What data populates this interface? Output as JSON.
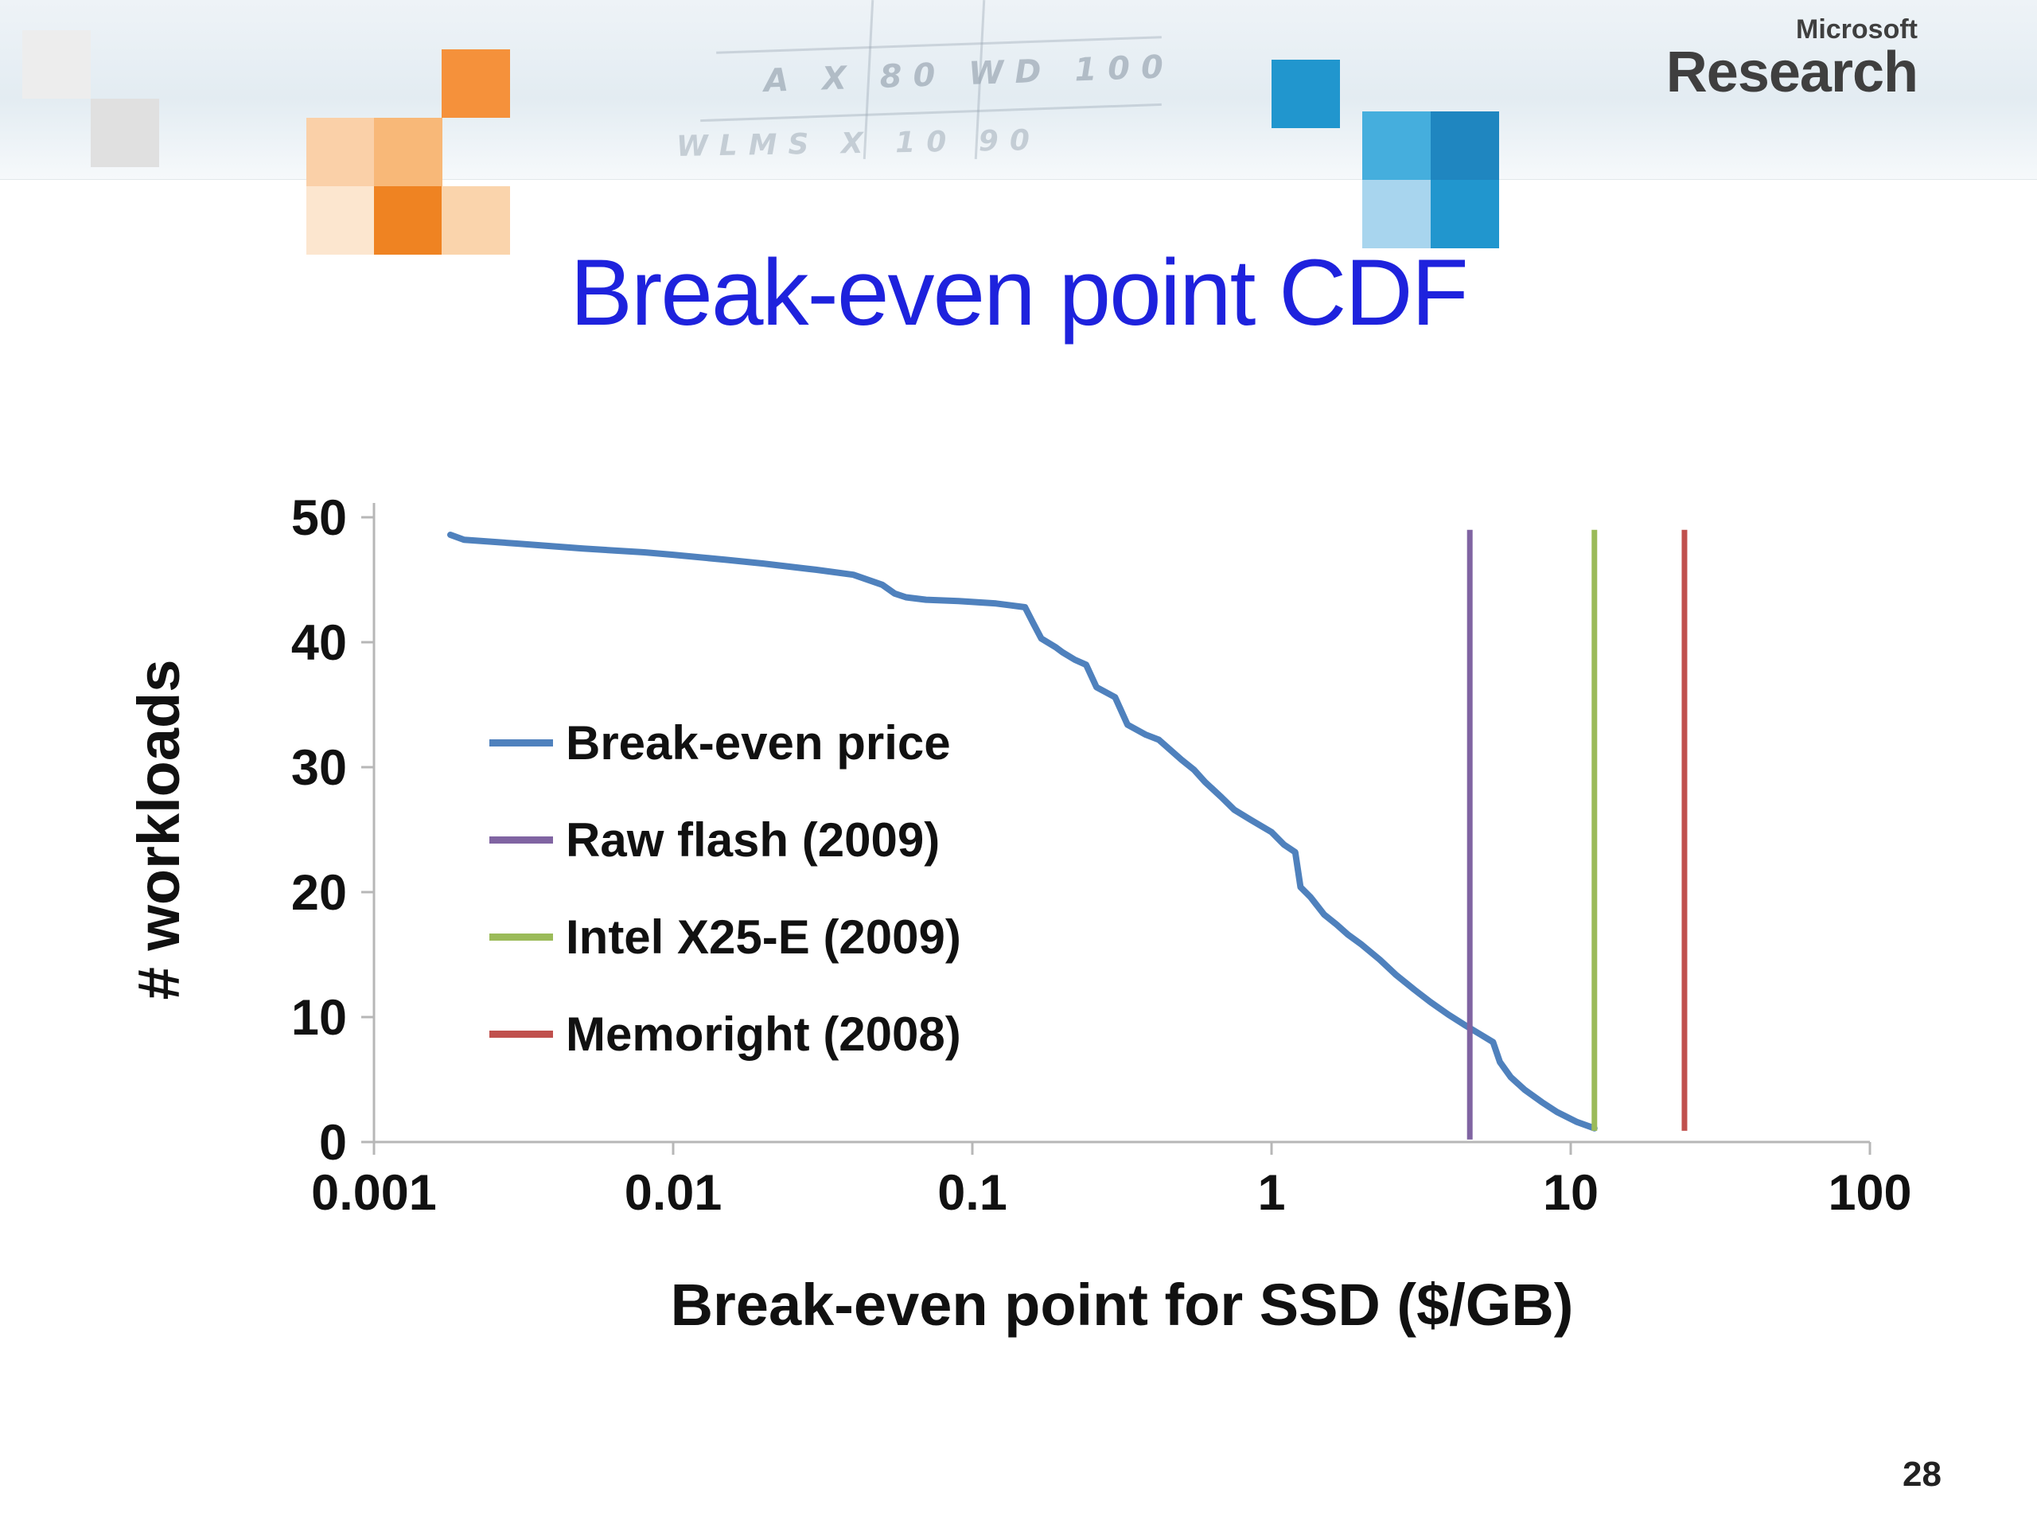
{
  "slide": {
    "title": "Break-even point CDF",
    "page_number": "28"
  },
  "logo": {
    "brand": "Microsoft",
    "division": "Research"
  },
  "header": {
    "sketch_text_1": "A  X  80  WD  100",
    "sketch_text_2": "WLMS      X  10  90"
  },
  "colors": {
    "title_blue": "#1e22dd",
    "curve_blue": "#4F81BD",
    "raw_flash_purple": "#8064A2",
    "intel_green": "#9BBB59",
    "memoright_red": "#C0504D",
    "axis_gray": "#b7b7b7"
  },
  "chart_data": {
    "type": "line",
    "title": "",
    "xlabel": "Break-even point for SSD ($/GB)",
    "ylabel": "# workloads",
    "x_scale": "log",
    "xlim": [
      0.001,
      100
    ],
    "ylim": [
      0,
      50
    ],
    "x_ticks": [
      "0.001",
      "0.01",
      "0.1",
      "1",
      "10",
      "100"
    ],
    "y_ticks": [
      "0",
      "10",
      "20",
      "30",
      "40",
      "50"
    ],
    "grid": false,
    "legend_position": "middle-left",
    "series": [
      {
        "name": "Break-even price",
        "color": "#4F81BD",
        "type": "cdf-curve",
        "points": [
          [
            0.0018,
            48.6
          ],
          [
            0.002,
            48.2
          ],
          [
            0.003,
            47.9
          ],
          [
            0.005,
            47.5
          ],
          [
            0.008,
            47.2
          ],
          [
            0.01,
            47.0
          ],
          [
            0.015,
            46.6
          ],
          [
            0.02,
            46.3
          ],
          [
            0.03,
            45.8
          ],
          [
            0.04,
            45.4
          ],
          [
            0.05,
            44.6
          ],
          [
            0.055,
            43.9
          ],
          [
            0.06,
            43.6
          ],
          [
            0.07,
            43.4
          ],
          [
            0.09,
            43.3
          ],
          [
            0.12,
            43.1
          ],
          [
            0.15,
            42.8
          ],
          [
            0.16,
            41.5
          ],
          [
            0.17,
            40.3
          ],
          [
            0.19,
            39.6
          ],
          [
            0.2,
            39.2
          ],
          [
            0.22,
            38.6
          ],
          [
            0.24,
            38.2
          ],
          [
            0.26,
            36.4
          ],
          [
            0.3,
            35.6
          ],
          [
            0.33,
            33.4
          ],
          [
            0.38,
            32.6
          ],
          [
            0.42,
            32.2
          ],
          [
            0.5,
            30.6
          ],
          [
            0.55,
            29.8
          ],
          [
            0.6,
            28.8
          ],
          [
            0.68,
            27.6
          ],
          [
            0.75,
            26.6
          ],
          [
            0.85,
            25.8
          ],
          [
            1.0,
            24.8
          ],
          [
            1.1,
            23.8
          ],
          [
            1.2,
            23.2
          ],
          [
            1.25,
            20.4
          ],
          [
            1.35,
            19.6
          ],
          [
            1.5,
            18.2
          ],
          [
            1.65,
            17.4
          ],
          [
            1.8,
            16.6
          ],
          [
            2.0,
            15.8
          ],
          [
            2.3,
            14.6
          ],
          [
            2.6,
            13.4
          ],
          [
            3.0,
            12.2
          ],
          [
            3.4,
            11.2
          ],
          [
            3.9,
            10.2
          ],
          [
            4.4,
            9.4
          ],
          [
            5.0,
            8.6
          ],
          [
            5.5,
            8.0
          ],
          [
            5.8,
            6.4
          ],
          [
            6.3,
            5.2
          ],
          [
            7.0,
            4.2
          ],
          [
            8.0,
            3.2
          ],
          [
            9.0,
            2.4
          ],
          [
            10.5,
            1.6
          ],
          [
            12.0,
            1.1
          ]
        ]
      },
      {
        "name": "Raw flash (2009)",
        "color": "#8064A2",
        "type": "vline",
        "x": 4.6,
        "y_range": [
          0.2,
          49
        ]
      },
      {
        "name": "Intel X25-E (2009)",
        "color": "#9BBB59",
        "type": "vline",
        "x": 12.0,
        "y_range": [
          0.9,
          49
        ]
      },
      {
        "name": "Memoright (2008)",
        "color": "#C0504D",
        "type": "vline",
        "x": 24.0,
        "y_range": [
          0.9,
          49
        ]
      }
    ]
  }
}
